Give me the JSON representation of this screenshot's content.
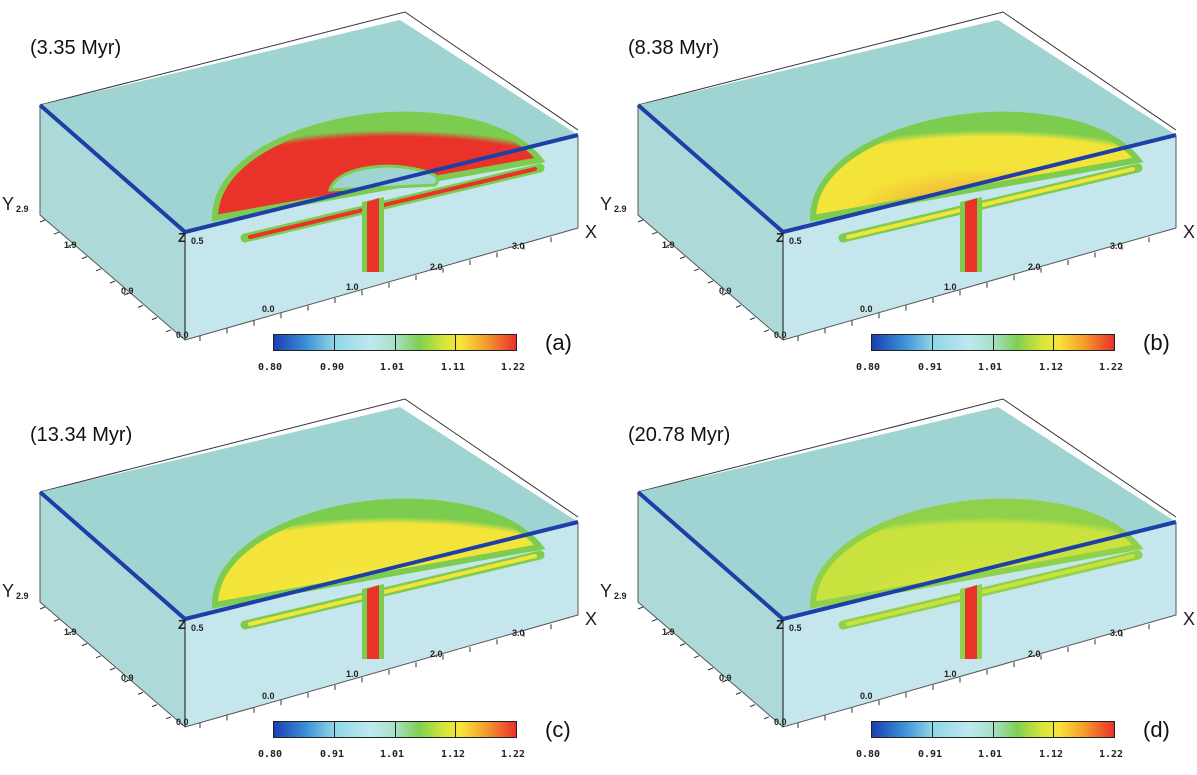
{
  "figure": {
    "panels": [
      {
        "id": "a",
        "time": "(3.35 Myr)",
        "label": "(a)",
        "colorbar_ticks": [
          "0.80",
          "0.90",
          "1.01",
          "1.11",
          "1.22"
        ]
      },
      {
        "id": "b",
        "time": "(8.38 Myr)",
        "label": "(b)",
        "colorbar_ticks": [
          "0.80",
          "0.91",
          "1.01",
          "1.12",
          "1.22"
        ]
      },
      {
        "id": "c",
        "time": "(13.34 Myr)",
        "label": "(c)",
        "colorbar_ticks": [
          "0.80",
          "0.91",
          "1.01",
          "1.12",
          "1.22"
        ]
      },
      {
        "id": "d",
        "time": "(20.78 Myr)",
        "label": "(d)",
        "colorbar_ticks": [
          "0.80",
          "0.91",
          "1.01",
          "1.12",
          "1.22"
        ]
      }
    ],
    "axes": {
      "x_label": "X",
      "y_label": "Y",
      "z_label": "Z",
      "x_ticks": [
        "0.0",
        "1.0",
        "2.0",
        "3.0"
      ],
      "y_ticks": [
        "0.0",
        "0.9",
        "1.9",
        "2.9"
      ],
      "z_tick": "0.5"
    },
    "colors": {
      "top_face": "#9fd4d2",
      "side_face": "#c5e6ec",
      "edge_blue": "#1f3fa8",
      "plume_red": "#e8322a",
      "plume_yellow": "#f4e43a",
      "plume_green": "#7ccd4f"
    }
  }
}
